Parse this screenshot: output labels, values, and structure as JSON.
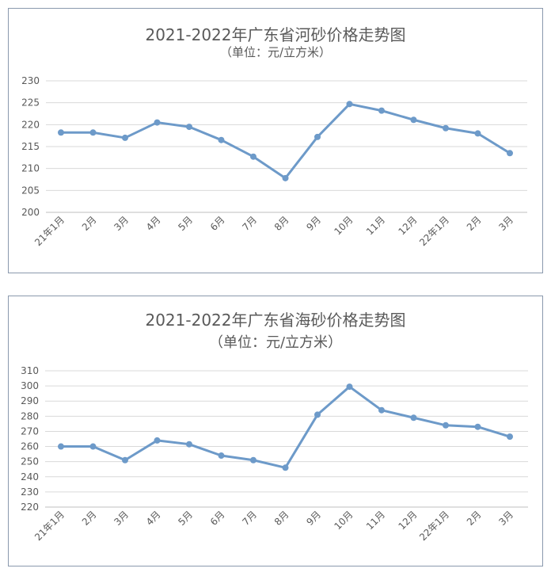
{
  "chart_data": [
    {
      "type": "line",
      "title": "2021-2022年广东省河砂价格走势图",
      "subtitle": "（单位：元/立方米）",
      "categories": [
        "21年1月",
        "2月",
        "3月",
        "4月",
        "5月",
        "6月",
        "7月",
        "8月",
        "9月",
        "10月",
        "11月",
        "12月",
        "22年1月",
        "2月",
        "3月"
      ],
      "series": [
        {
          "values": [
            218.2,
            218.2,
            217.0,
            220.5,
            219.5,
            216.5,
            212.7,
            207.8,
            217.2,
            224.7,
            223.2,
            221.1,
            219.2,
            218.0,
            213.5
          ]
        }
      ],
      "ylim": [
        200,
        230
      ],
      "yticks": [
        200,
        205,
        210,
        215,
        220,
        225,
        230
      ],
      "grid": true,
      "line_color": "#6d9ac9"
    },
    {
      "type": "line",
      "title": "2021-2022年广东省海砂价格走势图",
      "subtitle": "（单位：元/立方米）",
      "categories": [
        "21年1月",
        "2月",
        "3月",
        "4月",
        "5月",
        "6月",
        "7月",
        "8月",
        "9月",
        "10月",
        "11月",
        "12月",
        "22年1月",
        "2月",
        "3月"
      ],
      "series": [
        {
          "values": [
            260,
            260,
            251,
            264,
            261.5,
            254,
            251,
            246,
            281,
            299.5,
            284,
            279,
            274,
            273,
            266.5
          ]
        }
      ],
      "ylim": [
        220,
        310
      ],
      "yticks": [
        220,
        230,
        240,
        250,
        260,
        270,
        280,
        290,
        300,
        310
      ],
      "grid": true,
      "line_color": "#6d9ac9"
    }
  ]
}
